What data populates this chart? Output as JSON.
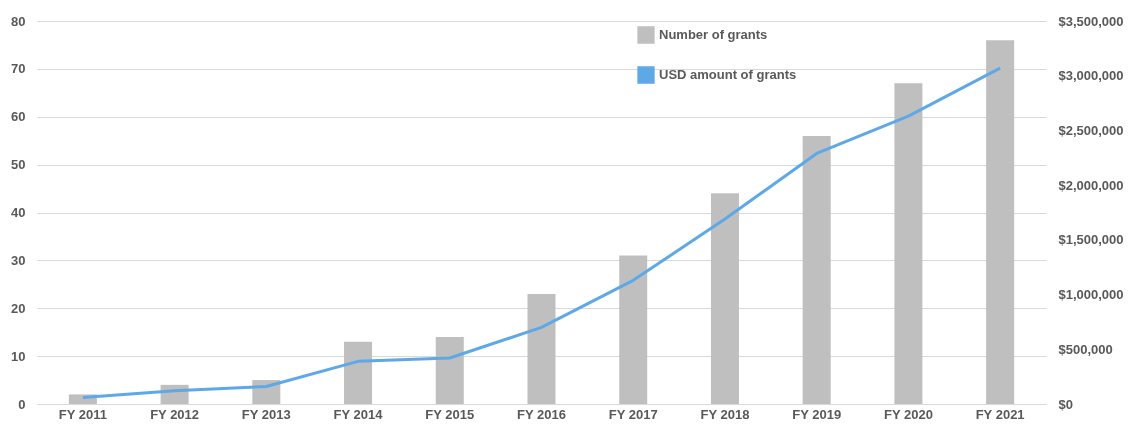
{
  "chart_data": {
    "type": "bar",
    "categories": [
      "FY 2011",
      "FY 2012",
      "FY 2013",
      "FY 2014",
      "FY 2015",
      "FY 2016",
      "FY 2017",
      "FY 2018",
      "FY 2019",
      "FY 2020",
      "FY 2021"
    ],
    "series": [
      {
        "name": "Number of grants",
        "color": "#bfbfbf",
        "values": [
          2,
          4,
          5,
          13,
          14,
          23,
          31,
          44,
          56,
          67,
          76
        ]
      },
      {
        "name": "USD amount of grants",
        "type": "line",
        "axis": "y2",
        "color": "#5fa8e8",
        "values": [
          60000,
          120000,
          160000,
          390000,
          420000,
          700000,
          1130000,
          1690000,
          2290000,
          2630000,
          3070000
        ]
      }
    ],
    "ylim": [
      0,
      80
    ],
    "yticks": [
      0,
      10,
      20,
      30,
      40,
      50,
      60,
      70,
      80
    ],
    "y2lim": [
      0,
      3500000
    ],
    "y2ticks": [
      {
        "value": 0,
        "label": "$0"
      },
      {
        "value": 500000,
        "label": "$500,000"
      },
      {
        "value": 1000000,
        "label": "$1,000,000"
      },
      {
        "value": 1500000,
        "label": "$1,500,000"
      },
      {
        "value": 2000000,
        "label": "$2,000,000"
      },
      {
        "value": 2500000,
        "label": "$2,500,000"
      },
      {
        "value": 3000000,
        "label": "$3,000,000"
      },
      {
        "value": 3500000,
        "label": "$3,500,000"
      }
    ],
    "grid": "y",
    "legend": "top right",
    "line_style": "solid",
    "marker": "none"
  }
}
